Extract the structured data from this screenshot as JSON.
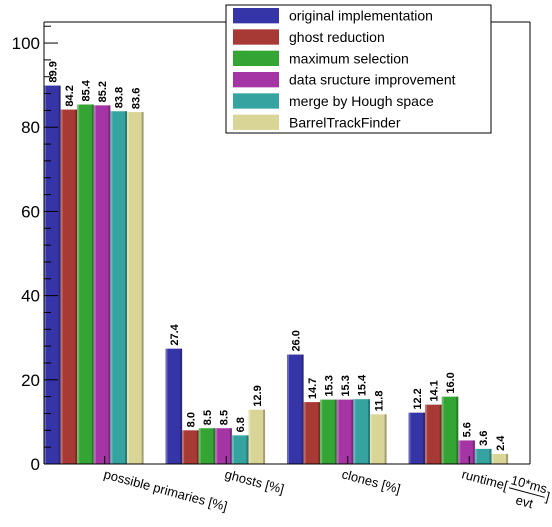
{
  "chart_data": {
    "type": "bar",
    "categories": [
      {
        "label": "possible primaries [%]"
      },
      {
        "label": "ghosts [%]"
      },
      {
        "label": "clones [%]"
      },
      {
        "label": "runtime[",
        "frac_num": "10*ms",
        "frac_den": "evt",
        "suffix": "]"
      }
    ],
    "series": [
      {
        "name": "original implementation",
        "color": "#3535a8",
        "values": [
          89.9,
          27.4,
          26.0,
          12.2
        ],
        "labels": [
          "89.9",
          "27.4",
          "26.0",
          "12.2"
        ]
      },
      {
        "name": "ghost reduction",
        "color": "#a83a35",
        "values": [
          84.2,
          8.0,
          14.7,
          14.1
        ],
        "labels": [
          "84.2",
          "8.0",
          "14.7",
          "14.1"
        ]
      },
      {
        "name": "maximum selection",
        "color": "#34a535",
        "values": [
          85.4,
          8.5,
          15.3,
          16.0
        ],
        "labels": [
          "85.4",
          "8.5",
          "15.3",
          "16.0"
        ]
      },
      {
        "name": "data sructure improvement",
        "color": "#a535a5",
        "values": [
          85.2,
          8.5,
          15.3,
          5.6
        ],
        "labels": [
          "85.2",
          "8.5",
          "15.3",
          "5.6"
        ]
      },
      {
        "name": "merge by Hough space",
        "color": "#35a3a0",
        "values": [
          83.8,
          6.8,
          15.4,
          3.6
        ],
        "labels": [
          "83.8",
          "6.8",
          "15.4",
          "3.6"
        ]
      },
      {
        "name": "BarrelTrackFinder",
        "color": "#d9d596",
        "values": [
          83.6,
          12.9,
          11.8,
          2.4
        ],
        "labels": [
          "83.6",
          "12.9",
          "11.8",
          "2.4"
        ]
      }
    ],
    "yticks": [
      "0",
      "20",
      "40",
      "60",
      "80",
      "100"
    ],
    "ylim": [
      0,
      105
    ],
    "legend_position": "top-right",
    "grid": false
  }
}
